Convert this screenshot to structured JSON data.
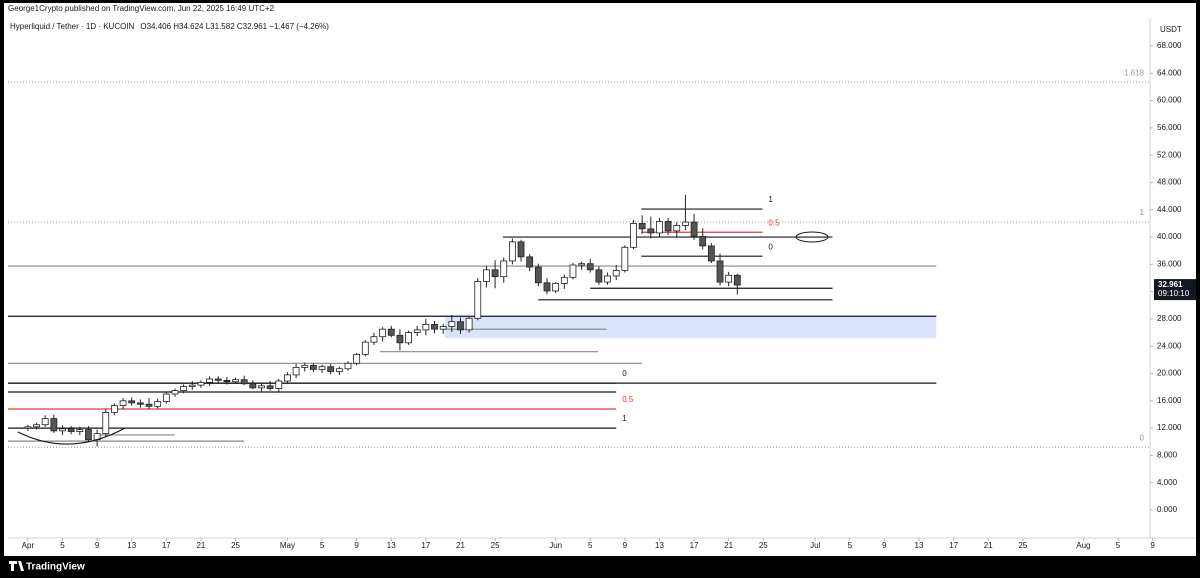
{
  "chart_data": {
    "type": "candlestick",
    "publisher_line": "George1Crypto published on TradingView.com, Jun 22, 2025 16:49 UTC+2",
    "title": "Hyperliquid / Tether · 1D · KUCOIN",
    "legend_line": "O34.406 H34.624 L31.582 C32.961 −1.467 (−4.26%)",
    "y_unit": "USDT",
    "countdown": "09:10:10",
    "footer": "TradingView",
    "up_color": "#ffffff",
    "down_color": "#555555",
    "outline_color": "#222222",
    "x": [
      0,
      1,
      2,
      3,
      4,
      5,
      6,
      7,
      8,
      9,
      10,
      11,
      12,
      13,
      14,
      15,
      16,
      17,
      18,
      19,
      20,
      21,
      22,
      23,
      24,
      25,
      26,
      27,
      28,
      29,
      30,
      31,
      32,
      33,
      34,
      35,
      36,
      37,
      38,
      39,
      40,
      41,
      42,
      43,
      44,
      45,
      46,
      47,
      48,
      49,
      50,
      51,
      52,
      53,
      54,
      55,
      56,
      57,
      58,
      59,
      60,
      61,
      62,
      63,
      64,
      65,
      66,
      67,
      68,
      69,
      70,
      71,
      72,
      73,
      74,
      75,
      76,
      77,
      78,
      79,
      80,
      81,
      82
    ],
    "open": [
      12.0,
      12.2,
      12.5,
      13.4,
      11.6,
      11.9,
      11.5,
      11.8,
      10.3,
      11.2,
      14.3,
      15.3,
      16.0,
      15.7,
      15.5,
      15.2,
      15.9,
      17.0,
      17.5,
      18.1,
      18.3,
      18.7,
      19.2,
      19.0,
      18.8,
      19.1,
      18.5,
      17.9,
      18.2,
      17.8,
      18.9,
      19.8,
      20.9,
      21.2,
      20.6,
      21.0,
      20.3,
      20.7,
      21.5,
      22.8,
      24.6,
      25.4,
      26.5,
      25.6,
      24.5,
      26.0,
      26.4,
      27.2,
      26.5,
      26.9,
      27.6,
      26.4,
      28.1,
      33.5,
      35.2,
      34.2,
      36.5,
      39.3,
      37.1,
      35.6,
      33.3,
      32.1,
      33.2,
      34.1,
      35.9,
      36.1,
      35.2,
      33.4,
      34.3,
      35.1,
      38.5,
      42.0,
      41.2,
      40.6,
      42.3,
      40.9,
      41.7,
      42.2,
      40.1,
      38.7,
      36.5,
      33.4,
      34.406
    ],
    "high": [
      12.5,
      12.8,
      13.9,
      14.0,
      12.4,
      12.3,
      12.2,
      12.3,
      11.8,
      14.8,
      15.6,
      16.4,
      16.5,
      16.2,
      16.4,
      16.3,
      17.2,
      17.8,
      18.4,
      18.9,
      19.0,
      19.6,
      19.6,
      19.5,
      19.4,
      19.7,
      19.0,
      18.6,
      18.9,
      19.2,
      20.2,
      21.4,
      21.6,
      21.5,
      21.3,
      21.4,
      21.0,
      21.8,
      23.0,
      24.9,
      26.0,
      26.8,
      27.0,
      26.5,
      26.3,
      27.0,
      28.0,
      27.7,
      27.3,
      28.6,
      28.2,
      28.4,
      34.0,
      35.8,
      36.6,
      37.0,
      39.8,
      39.6,
      37.5,
      36.1,
      34.0,
      33.4,
      34.5,
      36.2,
      36.4,
      36.8,
      35.7,
      34.8,
      35.9,
      38.8,
      42.5,
      43.2,
      43.0,
      42.8,
      42.8,
      42.2,
      46.2,
      43.4,
      41.3,
      39.1,
      37.6,
      34.9,
      34.624
    ],
    "low": [
      11.6,
      11.8,
      12.2,
      11.3,
      11.0,
      11.1,
      11.0,
      10.0,
      9.3,
      10.8,
      13.9,
      14.8,
      15.3,
      15.0,
      14.8,
      14.9,
      15.6,
      16.6,
      17.1,
      17.6,
      17.9,
      18.2,
      18.6,
      18.4,
      18.5,
      18.3,
      17.7,
      17.4,
      17.5,
      17.2,
      18.6,
      19.3,
      20.3,
      20.2,
      20.1,
      19.9,
      19.8,
      20.4,
      21.2,
      22.5,
      24.2,
      24.7,
      25.3,
      23.4,
      24.2,
      25.5,
      25.6,
      25.9,
      25.8,
      26.1,
      25.8,
      26.0,
      27.8,
      32.6,
      32.5,
      33.3,
      36.0,
      36.4,
      35.0,
      32.8,
      31.6,
      31.8,
      32.4,
      33.8,
      35.2,
      34.8,
      33.0,
      33.0,
      33.7,
      34.8,
      38.2,
      40.5,
      39.8,
      40.0,
      40.3,
      39.9,
      41.0,
      39.6,
      38.2,
      36.2,
      32.9,
      32.8,
      31.582
    ],
    "close": [
      12.2,
      12.5,
      13.4,
      11.6,
      11.9,
      11.5,
      11.8,
      10.3,
      11.2,
      14.3,
      15.3,
      16.0,
      15.7,
      15.5,
      15.2,
      15.9,
      17.0,
      17.5,
      18.1,
      18.3,
      18.7,
      19.2,
      19.0,
      18.8,
      19.1,
      18.5,
      17.9,
      18.2,
      17.8,
      18.9,
      19.8,
      20.9,
      21.2,
      20.6,
      21.0,
      20.3,
      20.7,
      21.5,
      22.8,
      24.6,
      25.4,
      26.5,
      25.6,
      24.5,
      26.0,
      26.4,
      27.2,
      26.5,
      26.9,
      27.6,
      26.4,
      28.1,
      33.5,
      35.2,
      34.2,
      36.5,
      39.3,
      37.1,
      35.6,
      33.3,
      32.1,
      33.2,
      34.1,
      35.9,
      36.1,
      35.2,
      33.4,
      34.3,
      35.1,
      38.5,
      42.0,
      41.2,
      40.6,
      42.3,
      40.9,
      41.7,
      42.2,
      40.1,
      38.7,
      36.5,
      33.4,
      34.4,
      32.961
    ],
    "xlim": [
      -2.3,
      129.7
    ],
    "ylim": [
      -4.1,
      72.1
    ],
    "grid": false,
    "xticks": [
      {
        "value": 0,
        "label": "Apr"
      },
      {
        "value": 4,
        "label": "5"
      },
      {
        "value": 8,
        "label": "9"
      },
      {
        "value": 12,
        "label": "13"
      },
      {
        "value": 16,
        "label": "17"
      },
      {
        "value": 20,
        "label": "21"
      },
      {
        "value": 24,
        "label": "25"
      },
      {
        "value": 30,
        "label": "May"
      },
      {
        "value": 34,
        "label": "5"
      },
      {
        "value": 38,
        "label": "9"
      },
      {
        "value": 42,
        "label": "13"
      },
      {
        "value": 46,
        "label": "17"
      },
      {
        "value": 50,
        "label": "21"
      },
      {
        "value": 54,
        "label": "25"
      },
      {
        "value": 61,
        "label": "Jun"
      },
      {
        "value": 65,
        "label": "5"
      },
      {
        "value": 69,
        "label": "9"
      },
      {
        "value": 73,
        "label": "13"
      },
      {
        "value": 77,
        "label": "17"
      },
      {
        "value": 81,
        "label": "21"
      },
      {
        "value": 85,
        "label": "25"
      },
      {
        "value": 91,
        "label": "Jul"
      },
      {
        "value": 95,
        "label": "5"
      },
      {
        "value": 99,
        "label": "9"
      },
      {
        "value": 103,
        "label": "13"
      },
      {
        "value": 107,
        "label": "17"
      },
      {
        "value": 111,
        "label": "21"
      },
      {
        "value": 115,
        "label": "25"
      },
      {
        "value": 122,
        "label": "Aug"
      },
      {
        "value": 126,
        "label": "5"
      },
      {
        "value": 130,
        "label": "9"
      }
    ],
    "yticks": [
      {
        "value": 0,
        "label": "0.000"
      },
      {
        "value": 4,
        "label": "4.000"
      },
      {
        "value": 8,
        "label": "8.000"
      },
      {
        "value": 12,
        "label": "12.000"
      },
      {
        "value": 16,
        "label": "16.000"
      },
      {
        "value": 20,
        "label": "20.000"
      },
      {
        "value": 24,
        "label": "24.000"
      },
      {
        "value": 28,
        "label": "28.000"
      },
      {
        "value": 32,
        "label": "32.000"
      },
      {
        "value": 36,
        "label": "36.000"
      },
      {
        "value": 40,
        "label": "40.000"
      },
      {
        "value": 44,
        "label": "44.000"
      },
      {
        "value": 48,
        "label": "48.000"
      },
      {
        "value": 52,
        "label": "52.000"
      },
      {
        "value": 56,
        "label": "56.000"
      },
      {
        "value": 60,
        "label": "60.000"
      },
      {
        "value": 64,
        "label": "64.000"
      },
      {
        "value": 68,
        "label": "68.000"
      }
    ],
    "zone": {
      "y0": 25.2,
      "y1": 28.4,
      "x0": 48.2,
      "x1": 105,
      "color": "#dbe3fb"
    },
    "levels": [
      {
        "value": 62.7,
        "x0": -2.3,
        "x1": 129.7,
        "color": "#9598a1",
        "style": "dotted",
        "label": "1.618",
        "label_align": "right"
      },
      {
        "value": 42.2,
        "x0": -2.3,
        "x1": 129.7,
        "color": "#9598a1",
        "style": "dotted",
        "label": "1",
        "label_align": "right"
      },
      {
        "value": 9.2,
        "x0": -2.3,
        "x1": 129.7,
        "color": "#9598a1",
        "style": "dotted",
        "label": "0",
        "label_align": "right"
      },
      {
        "value": 35.75,
        "x0": -2.3,
        "x1": 105,
        "color": "#888888",
        "style": "solid"
      },
      {
        "value": 28.4,
        "x0": -2.3,
        "x1": 105,
        "color": "#131722",
        "style": "solid"
      },
      {
        "value": 26.5,
        "x0": 48.2,
        "x1": 66.9,
        "color": "#888888",
        "style": "solid"
      },
      {
        "value": 23.2,
        "x0": 40.7,
        "x1": 65.9,
        "color": "#888888",
        "style": "solid"
      },
      {
        "value": 21.5,
        "x0": -2.3,
        "x1": 71,
        "color": "#888888",
        "style": "solid"
      },
      {
        "value": 18.6,
        "x0": -2.3,
        "x1": 105,
        "color": "#131722",
        "style": "solid"
      },
      {
        "value": 18.6,
        "x0": -2.3,
        "x1": 68,
        "color": "#131722",
        "style": "solid",
        "label": "0",
        "label_align": "end"
      },
      {
        "value": 17.3,
        "x0": -2.3,
        "x1": 68,
        "color": "#131722",
        "style": "solid"
      },
      {
        "value": 14.8,
        "x0": -2.3,
        "x1": 68,
        "color": "#e53935",
        "style": "solid",
        "label": "0.5",
        "label_align": "end"
      },
      {
        "value": 12.0,
        "x0": -2.3,
        "x1": 68,
        "color": "#131722",
        "style": "solid",
        "label": "1",
        "label_align": "end"
      },
      {
        "value": 11.0,
        "x0": 8.3,
        "x1": 17,
        "color": "#888888",
        "style": "solid"
      },
      {
        "value": 10.1,
        "x0": -2.3,
        "x1": 25,
        "color": "#888888",
        "style": "solid"
      },
      {
        "value": 44.1,
        "x0": 70.9,
        "x1": 84.9,
        "color": "#131722",
        "style": "solid",
        "label": "1",
        "label_align": "end"
      },
      {
        "value": 40.7,
        "x0": 70.9,
        "x1": 84.9,
        "color": "#e53935",
        "style": "solid",
        "label": "0.5",
        "label_align": "end"
      },
      {
        "value": 37.2,
        "x0": 70.9,
        "x1": 84.9,
        "color": "#131722",
        "style": "solid",
        "label": "0",
        "label_align": "end"
      },
      {
        "value": 40.0,
        "x0": 54.9,
        "x1": 93,
        "color": "#131722",
        "style": "solid"
      },
      {
        "value": 32.5,
        "x0": 65,
        "x1": 93,
        "color": "#131722",
        "style": "solid"
      },
      {
        "value": 30.8,
        "x0": 59,
        "x1": 93,
        "color": "#131722",
        "style": "solid"
      }
    ]
  }
}
